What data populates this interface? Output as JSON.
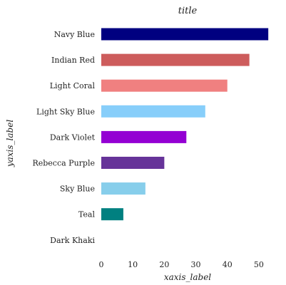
{
  "chart_data": {
    "type": "bar",
    "orientation": "horizontal",
    "title": "title",
    "xlabel": "xaxis_label",
    "ylabel": "yaxis_label",
    "categories": [
      "Dark Khaki",
      "Teal",
      "Sky Blue",
      "Rebecca Purple",
      "Dark Violet",
      "Light Sky Blue",
      "Light Coral",
      "Indian Red",
      "Navy Blue"
    ],
    "values": [
      0,
      7,
      14,
      20,
      27,
      33,
      40,
      47,
      53
    ],
    "colors": [
      "#bdb76b",
      "#008080",
      "#87ceeb",
      "#663399",
      "#9400d3",
      "#87cefa",
      "#f08080",
      "#cd5c5c",
      "#000080"
    ],
    "xticks": [
      0,
      10,
      20,
      30,
      40,
      50
    ],
    "xlim": [
      0,
      55
    ],
    "grid": false,
    "legend": false
  }
}
